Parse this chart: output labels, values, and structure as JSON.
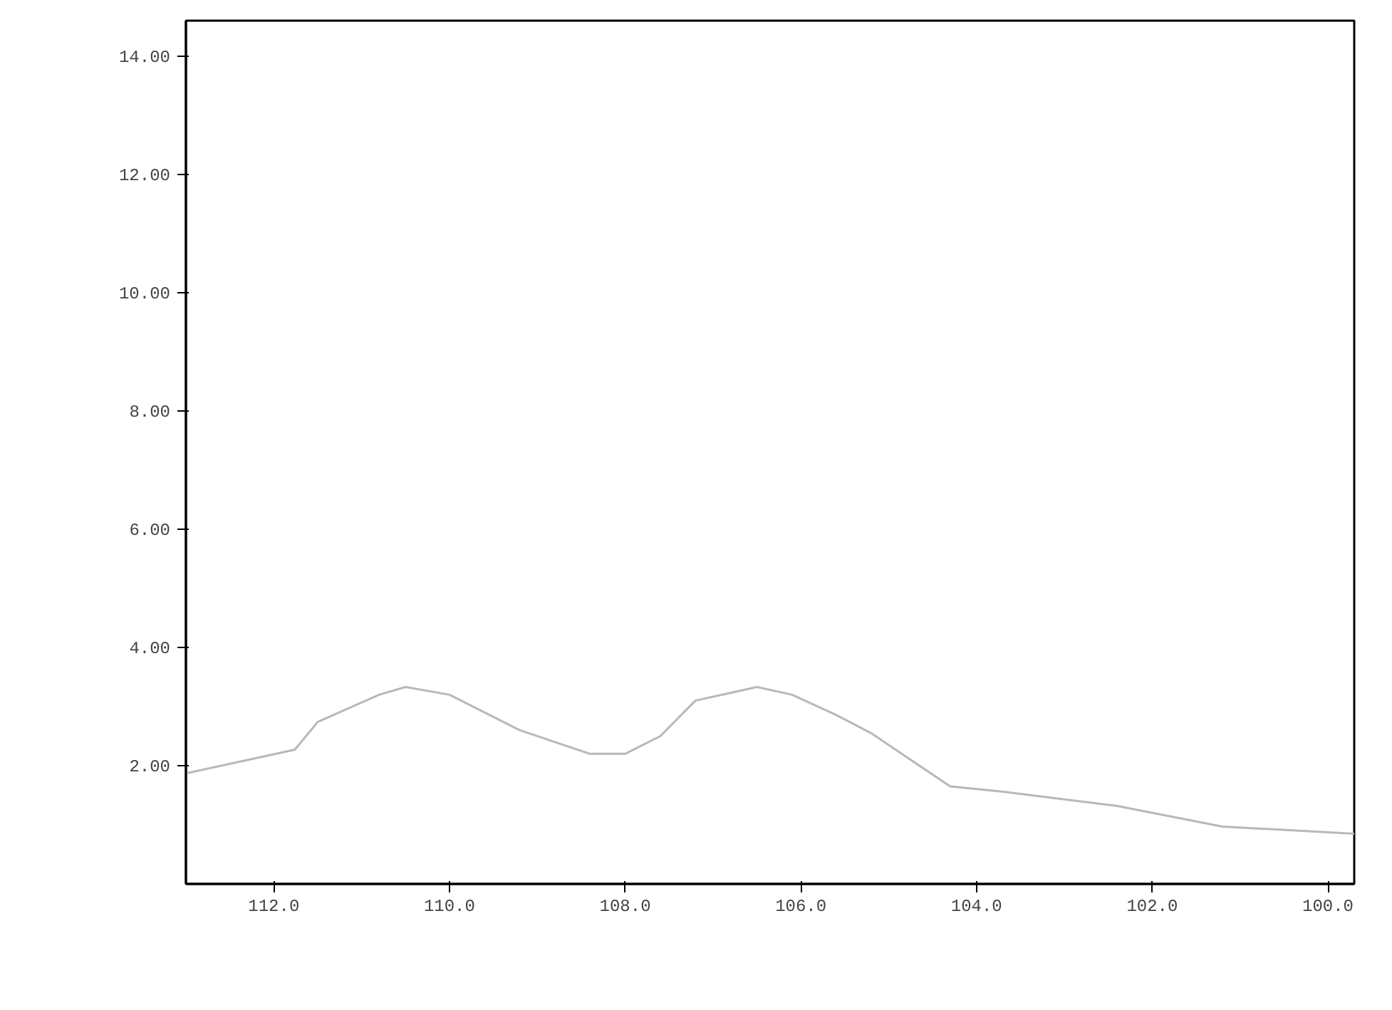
{
  "chart_data": {
    "type": "line",
    "x": [
      113.0,
      111.76,
      111.5,
      110.8,
      110.5,
      110.0,
      109.2,
      108.4,
      108.0,
      107.6,
      107.2,
      106.5,
      106.1,
      105.6,
      105.2,
      104.3,
      103.7,
      102.4,
      101.2,
      99.7
    ],
    "series": [
      {
        "color": "#b8b8b8",
        "values": [
          1.87,
          2.27,
          2.74,
          3.2,
          3.33,
          3.2,
          2.6,
          2.2,
          2.2,
          2.5,
          3.1,
          3.33,
          3.2,
          2.86,
          2.55,
          1.65,
          1.56,
          1.32,
          0.97,
          0.85
        ]
      }
    ],
    "xlim": [
      113.0,
      99.7
    ],
    "ylim": [
      0,
      14.6
    ],
    "xticks": [
      {
        "value": 112,
        "label": "112.0"
      },
      {
        "value": 110,
        "label": "110.0"
      },
      {
        "value": 108,
        "label": "108.0"
      },
      {
        "value": 106,
        "label": "106.0"
      },
      {
        "value": 104,
        "label": "104.0"
      },
      {
        "value": 102,
        "label": "102.0"
      },
      {
        "value": 100,
        "label": "100.0"
      }
    ],
    "yticks": [
      {
        "value": 2,
        "label": "2.00"
      },
      {
        "value": 4,
        "label": "4.00"
      },
      {
        "value": 6,
        "label": "6.00"
      },
      {
        "value": 8,
        "label": "8.00"
      },
      {
        "value": 10,
        "label": "10.00"
      },
      {
        "value": 12,
        "label": "12.00"
      },
      {
        "value": 14,
        "label": "14.00"
      }
    ],
    "grid": false,
    "marker": "none",
    "line_style": "solid"
  }
}
